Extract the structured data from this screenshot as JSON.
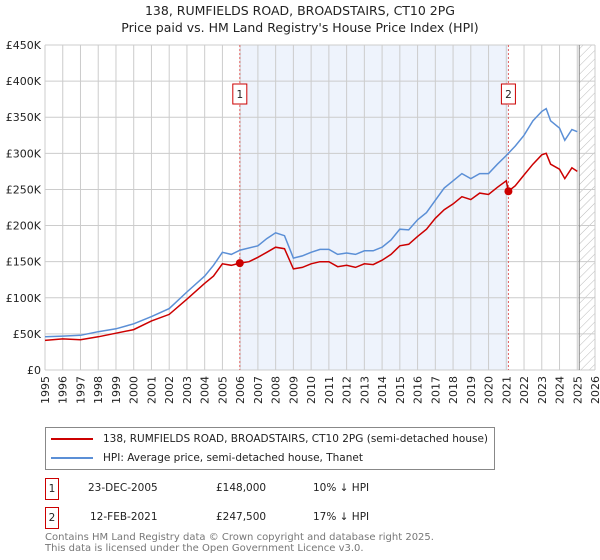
{
  "chart_data": {
    "type": "line",
    "title": "138, RUMFIELDS ROAD, BROADSTAIRS, CT10 2PG",
    "subtitle": "Price paid vs. HM Land Registry's House Price Index (HPI)",
    "xlim": [
      1995,
      2026
    ],
    "ylim": [
      0,
      450000
    ],
    "x_ticks": [
      "1995",
      "1996",
      "1997",
      "1998",
      "1999",
      "2000",
      "2001",
      "2002",
      "2003",
      "2004",
      "2005",
      "2006",
      "2007",
      "2008",
      "2009",
      "2010",
      "2011",
      "2012",
      "2013",
      "2014",
      "2015",
      "2016",
      "2017",
      "2018",
      "2019",
      "2020",
      "2021",
      "2022",
      "2023",
      "2024",
      "2025",
      "2026"
    ],
    "y_ticks": [
      {
        "value": 0,
        "label": "£0"
      },
      {
        "value": 50000,
        "label": "£50K"
      },
      {
        "value": 100000,
        "label": "£100K"
      },
      {
        "value": 150000,
        "label": "£150K"
      },
      {
        "value": 200000,
        "label": "£200K"
      },
      {
        "value": 250000,
        "label": "£250K"
      },
      {
        "value": 300000,
        "label": "£300K"
      },
      {
        "value": 350000,
        "label": "£350K"
      },
      {
        "value": 400000,
        "label": "£400K"
      },
      {
        "value": 450000,
        "label": "£450K"
      }
    ],
    "grid": true,
    "shaded_range": [
      2005.98,
      2021.12
    ],
    "hatched_from": 2025.0,
    "series": [
      {
        "name": "138, RUMFIELDS ROAD, BROADSTAIRS, CT10 2PG (semi-detached house)",
        "color": "#cc0000",
        "x": [
          1995,
          1996,
          1997,
          1998,
          1999,
          2000,
          2001,
          2002,
          2003,
          2004,
          2004.5,
          2005,
          2005.5,
          2005.98,
          2006.5,
          2007,
          2007.5,
          2008,
          2008.5,
          2009,
          2009.5,
          2010,
          2010.5,
          2011,
          2011.5,
          2012,
          2012.5,
          2013,
          2013.5,
          2014,
          2014.5,
          2015,
          2015.5,
          2016,
          2016.5,
          2017,
          2017.5,
          2018,
          2018.5,
          2019,
          2019.5,
          2020,
          2020.5,
          2021,
          2021.12,
          2021.5,
          2022,
          2022.5,
          2023,
          2023.25,
          2023.5,
          2024,
          2024.3,
          2024.7,
          2025
        ],
        "y": [
          41000,
          43000,
          42000,
          46000,
          51000,
          56000,
          68000,
          77000,
          98000,
          120000,
          130000,
          147000,
          145000,
          148000,
          150000,
          156000,
          163000,
          170000,
          168000,
          140000,
          142000,
          147000,
          150000,
          150000,
          143000,
          145000,
          142000,
          147000,
          146000,
          152000,
          160000,
          172000,
          174000,
          185000,
          195000,
          210000,
          222000,
          230000,
          240000,
          236000,
          245000,
          243000,
          253000,
          262000,
          247500,
          255000,
          270000,
          285000,
          298000,
          300000,
          285000,
          278000,
          265000,
          280000,
          275000
        ]
      },
      {
        "name": "HPI: Average price, semi-detached house, Thanet",
        "color": "#5b8fd6",
        "x": [
          1995,
          1996,
          1997,
          1998,
          1999,
          2000,
          2001,
          2002,
          2003,
          2004,
          2004.5,
          2005,
          2005.5,
          2006,
          2007,
          2007.5,
          2008,
          2008.5,
          2009,
          2009.5,
          2010,
          2010.5,
          2011,
          2011.5,
          2012,
          2012.5,
          2013,
          2013.5,
          2014,
          2014.5,
          2015,
          2015.5,
          2016,
          2016.5,
          2017,
          2017.5,
          2018,
          2018.5,
          2019,
          2019.5,
          2020,
          2020.5,
          2021,
          2021.5,
          2022,
          2022.5,
          2023,
          2023.25,
          2023.5,
          2024,
          2024.3,
          2024.7,
          2025
        ],
        "y": [
          46000,
          47000,
          48000,
          53000,
          57000,
          64000,
          74000,
          85000,
          108000,
          130000,
          145000,
          163000,
          160000,
          166000,
          172000,
          182000,
          190000,
          186000,
          155000,
          158000,
          163000,
          167000,
          167000,
          160000,
          162000,
          160000,
          165000,
          165000,
          170000,
          180000,
          195000,
          194000,
          208000,
          218000,
          235000,
          252000,
          262000,
          272000,
          265000,
          272000,
          272000,
          285000,
          297000,
          310000,
          325000,
          345000,
          358000,
          362000,
          345000,
          335000,
          318000,
          333000,
          330000
        ]
      }
    ],
    "annotations": [
      {
        "label": "1",
        "x": 2005.98,
        "y": 148000
      },
      {
        "label": "2",
        "x": 2021.12,
        "y": 247500
      }
    ],
    "legend": "bottom"
  },
  "sales": [
    {
      "num": "1",
      "date": "23-DEC-2005",
      "price": "£148,000",
      "hpi": "10% ↓ HPI"
    },
    {
      "num": "2",
      "date": "12-FEB-2021",
      "price": "£247,500",
      "hpi": "17% ↓ HPI"
    }
  ],
  "footer": {
    "line1": "Contains HM Land Registry data © Crown copyright and database right 2025.",
    "line2": "This data is licensed under the Open Government Licence v3.0."
  }
}
